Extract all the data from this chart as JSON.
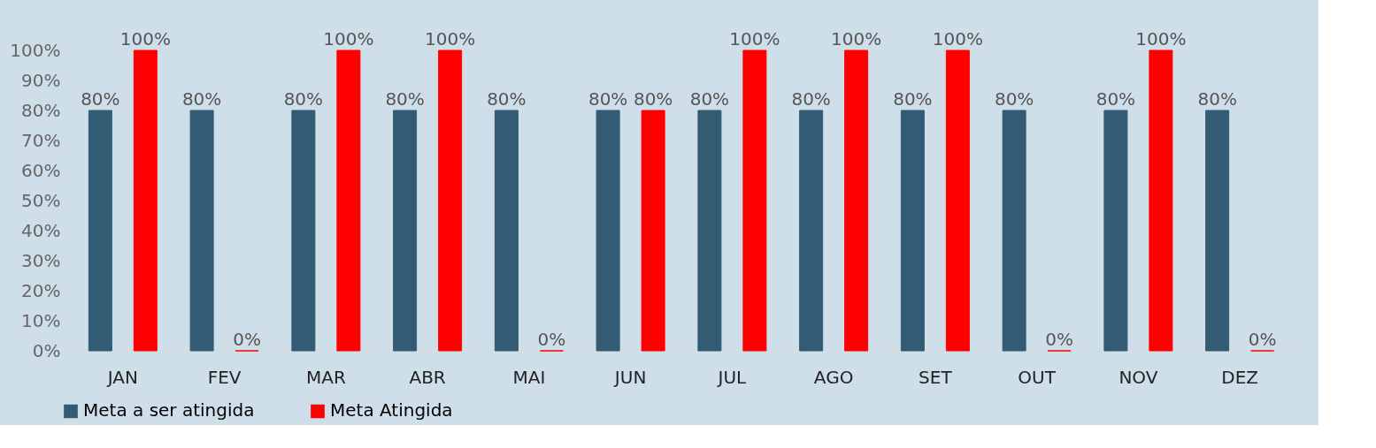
{
  "chart_data": {
    "type": "bar",
    "categories": [
      "JAN",
      "FEV",
      "MAR",
      "ABR",
      "MAI",
      "JUN",
      "JUL",
      "AGO",
      "SET",
      "OUT",
      "NOV",
      "DEZ"
    ],
    "series": [
      {
        "name": "Meta a ser atingida",
        "color": "#335b74",
        "values": [
          80,
          80,
          80,
          80,
          80,
          80,
          80,
          80,
          80,
          80,
          80,
          80
        ],
        "value_labels": [
          "80%",
          "80%",
          "80%",
          "80%",
          "80%",
          "80%",
          "80%",
          "80%",
          "80%",
          "80%",
          "80%",
          "80%"
        ]
      },
      {
        "name": "Meta Atingida",
        "color": "#ff0000",
        "values": [
          100,
          0,
          100,
          100,
          0,
          80,
          100,
          100,
          100,
          0,
          100,
          0
        ],
        "value_labels": [
          "100%",
          "0%",
          "100%",
          "100%",
          "0%",
          "80%",
          "100%",
          "100%",
          "100%",
          "0%",
          "100%",
          "0%"
        ]
      }
    ],
    "ylim": [
      0,
      100
    ],
    "yticks": [
      {
        "value": 0,
        "label": "0%"
      },
      {
        "value": 10,
        "label": "10%"
      },
      {
        "value": 20,
        "label": "20%"
      },
      {
        "value": 30,
        "label": "30%"
      },
      {
        "value": 40,
        "label": "40%"
      },
      {
        "value": 50,
        "label": "50%"
      },
      {
        "value": 60,
        "label": "60%"
      },
      {
        "value": 70,
        "label": "70%"
      },
      {
        "value": 80,
        "label": "80%"
      },
      {
        "value": 90,
        "label": "90%"
      },
      {
        "value": 100,
        "label": "100%"
      }
    ],
    "grid": false,
    "legend": "bottom"
  }
}
